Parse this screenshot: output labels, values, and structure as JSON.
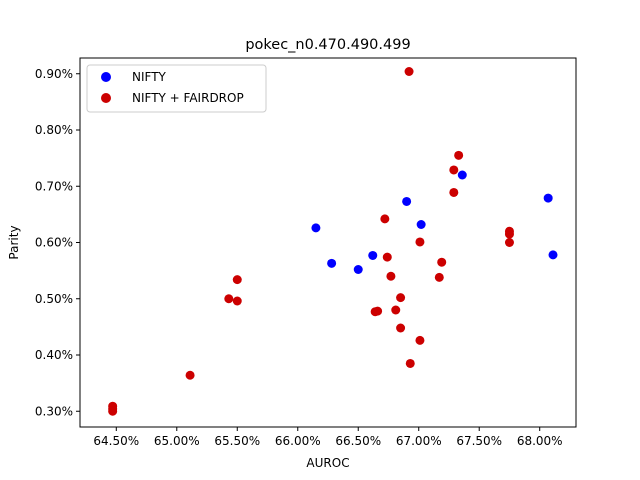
{
  "chart_data": {
    "type": "scatter",
    "title": "pokec_n0.470.490.499",
    "xlabel": "AUROC",
    "ylabel": "Parity",
    "xlim": [
      64.2,
      68.3
    ],
    "ylim": [
      0.272,
      0.928
    ],
    "xticks": [
      64.5,
      65.0,
      65.5,
      66.0,
      66.5,
      67.0,
      67.5,
      68.0
    ],
    "yticks": [
      0.3,
      0.4,
      0.5,
      0.6,
      0.7,
      0.8,
      0.9
    ],
    "xtick_labels": [
      "64.50%",
      "65.00%",
      "65.50%",
      "66.00%",
      "66.50%",
      "67.00%",
      "67.50%",
      "68.00%"
    ],
    "ytick_labels": [
      "0.30%",
      "0.40%",
      "0.50%",
      "0.60%",
      "0.70%",
      "0.80%",
      "0.90%"
    ],
    "legend_position": "upper-left",
    "series": [
      {
        "name": "NIFTY",
        "color": "#0000ff",
        "points": [
          [
            66.15,
            0.626
          ],
          [
            66.28,
            0.563
          ],
          [
            66.5,
            0.552
          ],
          [
            66.62,
            0.577
          ],
          [
            66.9,
            0.673
          ],
          [
            67.02,
            0.632
          ],
          [
            67.36,
            0.72
          ],
          [
            68.07,
            0.679
          ],
          [
            68.11,
            0.578
          ]
        ]
      },
      {
        "name": "NIFTY + FAIRDROP",
        "color": "#cc0000",
        "points": [
          [
            64.47,
            0.309
          ],
          [
            64.47,
            0.304
          ],
          [
            64.47,
            0.3
          ],
          [
            65.11,
            0.364
          ],
          [
            65.43,
            0.5
          ],
          [
            65.5,
            0.496
          ],
          [
            65.5,
            0.534
          ],
          [
            66.64,
            0.477
          ],
          [
            66.66,
            0.478
          ],
          [
            66.72,
            0.642
          ],
          [
            66.74,
            0.574
          ],
          [
            66.77,
            0.54
          ],
          [
            66.81,
            0.48
          ],
          [
            66.85,
            0.502
          ],
          [
            66.85,
            0.448
          ],
          [
            66.92,
            0.904
          ],
          [
            66.93,
            0.385
          ],
          [
            67.01,
            0.601
          ],
          [
            67.01,
            0.426
          ],
          [
            67.17,
            0.538
          ],
          [
            67.19,
            0.565
          ],
          [
            67.29,
            0.729
          ],
          [
            67.29,
            0.689
          ],
          [
            67.33,
            0.755
          ],
          [
            67.75,
            0.62
          ],
          [
            67.75,
            0.615
          ],
          [
            67.75,
            0.6
          ]
        ]
      }
    ]
  }
}
